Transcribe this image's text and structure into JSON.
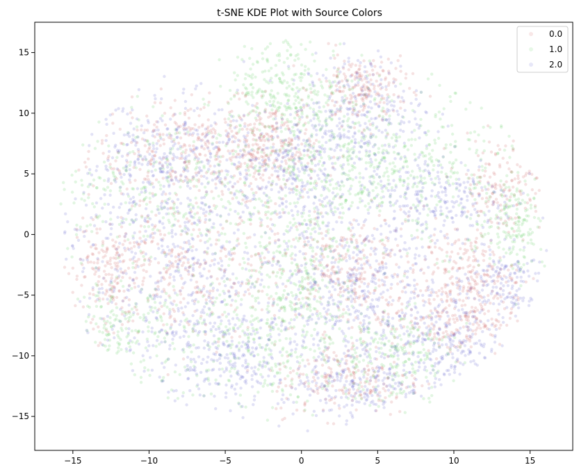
{
  "chart_data": {
    "type": "scatter",
    "title": "t-SNE KDE Plot with Source Colors",
    "xlabel": "",
    "ylabel": "",
    "xlim": [
      -17.5,
      17.8
    ],
    "ylim": [
      -17.8,
      17.5
    ],
    "xticks": [
      -15,
      -10,
      -5,
      0,
      5,
      10,
      15
    ],
    "yticks": [
      -15,
      -10,
      -5,
      0,
      5,
      10,
      15
    ],
    "tick_labels_x": [
      "−15",
      "−10",
      "−5",
      "0",
      "5",
      "10",
      "15"
    ],
    "tick_labels_y": [
      "−15",
      "−10",
      "−5",
      "0",
      "5",
      "10",
      "15"
    ],
    "grid": false,
    "legend": {
      "location": "top-right",
      "entries": [
        "0.0",
        "1.0",
        "2.0"
      ]
    },
    "series": [
      {
        "name": "0.0",
        "color": "#cd5c5c",
        "clusters": [
          {
            "cx": -7,
            "cy": 7,
            "sx": 3.5,
            "sy": 2,
            "n": 350
          },
          {
            "cx": -8,
            "cy": -3,
            "sx": 4,
            "sy": 3,
            "n": 350
          },
          {
            "cx": 3,
            "cy": -3,
            "sx": 2.5,
            "sy": 2.5,
            "n": 300
          },
          {
            "cx": -2,
            "cy": 7,
            "sx": 1.5,
            "sy": 2,
            "n": 220
          },
          {
            "cx": 4,
            "cy": 12,
            "sx": 1.5,
            "sy": 1.5,
            "n": 200
          },
          {
            "cx": 10,
            "cy": -7,
            "sx": 2,
            "sy": 1.5,
            "n": 220
          },
          {
            "cx": 3,
            "cy": -12,
            "sx": 2.5,
            "sy": 1.5,
            "n": 200
          },
          {
            "cx": 13,
            "cy": 4,
            "sx": 1.5,
            "sy": 2,
            "n": 160
          },
          {
            "cx": 11,
            "cy": -3,
            "sx": 1.5,
            "sy": 1.5,
            "n": 160
          },
          {
            "cx": -13,
            "cy": -3,
            "sx": 1,
            "sy": 2,
            "n": 120
          }
        ]
      },
      {
        "name": "1.0",
        "color": "#5ccd5c",
        "clusters": [
          {
            "cx": -9,
            "cy": 4,
            "sx": 4,
            "sy": 3,
            "n": 350
          },
          {
            "cx": -3,
            "cy": -9,
            "sx": 4,
            "sy": 3,
            "n": 380
          },
          {
            "cx": 2,
            "cy": 6,
            "sx": 3,
            "sy": 3,
            "n": 350
          },
          {
            "cx": 8,
            "cy": 5,
            "sx": 3,
            "sy": 3,
            "n": 300
          },
          {
            "cx": -1,
            "cy": 12,
            "sx": 2,
            "sy": 2,
            "n": 260
          },
          {
            "cx": 6,
            "cy": -10,
            "sx": 2,
            "sy": 2,
            "n": 220
          },
          {
            "cx": -12,
            "cy": -8,
            "sx": 1.5,
            "sy": 2,
            "n": 160
          },
          {
            "cx": 14,
            "cy": 1,
            "sx": 1,
            "sy": 2,
            "n": 150
          },
          {
            "cx": 0,
            "cy": -3,
            "sx": 2,
            "sy": 3,
            "n": 260
          }
        ]
      },
      {
        "name": "2.0",
        "color": "#5c5ccd",
        "clusters": [
          {
            "cx": -8,
            "cy": 6,
            "sx": 3.5,
            "sy": 2.5,
            "n": 420
          },
          {
            "cx": -9,
            "cy": -3,
            "sx": 4,
            "sy": 3.5,
            "n": 460
          },
          {
            "cx": -4,
            "cy": -10,
            "sx": 3,
            "sy": 2.5,
            "n": 360
          },
          {
            "cx": 0,
            "cy": 5,
            "sx": 2,
            "sy": 3,
            "n": 320
          },
          {
            "cx": 4,
            "cy": -4,
            "sx": 2.5,
            "sy": 2.5,
            "n": 360
          },
          {
            "cx": 9,
            "cy": -9,
            "sx": 2,
            "sy": 2,
            "n": 260
          },
          {
            "cx": 9,
            "cy": 3,
            "sx": 2.5,
            "sy": 2,
            "n": 260
          },
          {
            "cx": 4,
            "cy": 10,
            "sx": 2,
            "sy": 2.5,
            "n": 260
          },
          {
            "cx": 13,
            "cy": -4,
            "sx": 1.5,
            "sy": 1.5,
            "n": 160
          },
          {
            "cx": 4,
            "cy": -12,
            "sx": 2,
            "sy": 1.5,
            "n": 200
          }
        ]
      }
    ]
  }
}
